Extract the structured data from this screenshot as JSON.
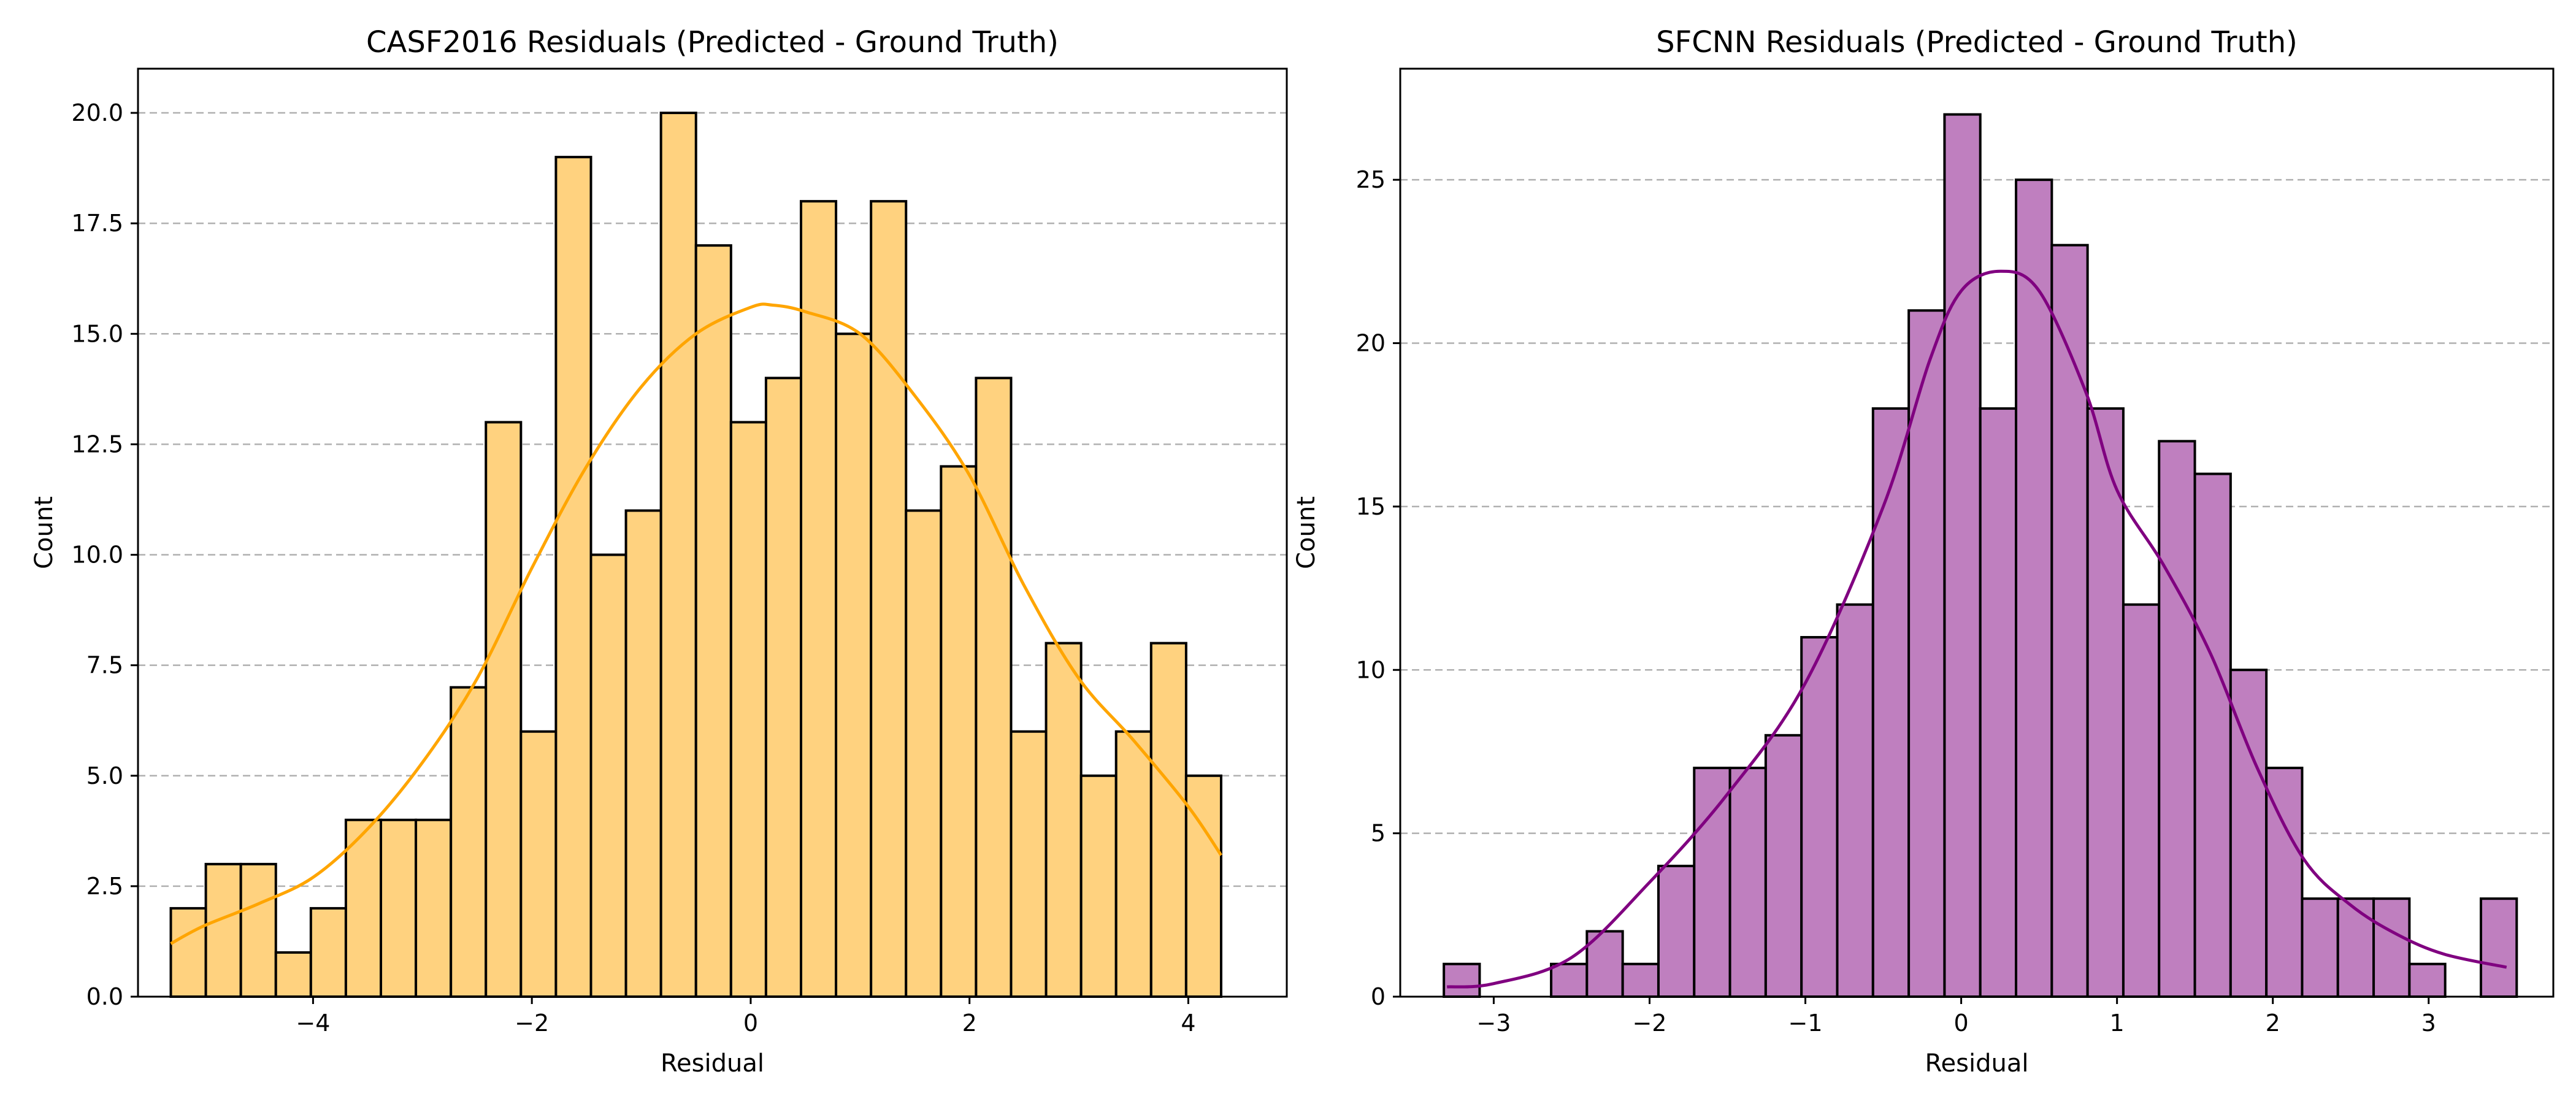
{
  "chart_data": [
    {
      "type": "bar",
      "title": "CASF2016 Residuals (Predicted - Ground Truth)",
      "xlabel": "Residual",
      "ylabel": "Count",
      "xlim": [
        -5.6,
        4.9
      ],
      "ylim": [
        0,
        21
      ],
      "xticks": [
        -4,
        -2,
        0,
        2,
        4
      ],
      "xtick_labels": [
        "−4",
        "−2",
        "0",
        "2",
        "4"
      ],
      "yticks": [
        0,
        2.5,
        5,
        7.5,
        10,
        12.5,
        15,
        17.5,
        20
      ],
      "ytick_labels": [
        "0.0",
        "2.5",
        "5.0",
        "7.5",
        "10.0",
        "12.5",
        "15.0",
        "17.5",
        "20.0"
      ],
      "grid": "y-dashed",
      "bin_start": -5.3,
      "bin_width": 0.32,
      "values": [
        2,
        3,
        3,
        1,
        2,
        4,
        4,
        4,
        7,
        13,
        6,
        19,
        10,
        11,
        20,
        17,
        13,
        14,
        18,
        15,
        18,
        11,
        12,
        14,
        6,
        8,
        5,
        6,
        8,
        5
      ],
      "bar_color": "#FFD27F",
      "kde_color": "#FFA500",
      "kde": {
        "x": [
          -5.3,
          -5.0,
          -4.5,
          -4.0,
          -3.5,
          -3.0,
          -2.5,
          -2.0,
          -1.5,
          -1.0,
          -0.5,
          0.0,
          0.2,
          0.5,
          1.0,
          1.5,
          2.0,
          2.5,
          3.0,
          3.5,
          4.0,
          4.3
        ],
        "y": [
          1.2,
          1.6,
          2.1,
          2.7,
          3.8,
          5.3,
          7.2,
          9.7,
          12.0,
          13.8,
          15.0,
          15.6,
          15.65,
          15.5,
          15.0,
          13.6,
          11.8,
          9.3,
          7.2,
          5.8,
          4.3,
          3.2
        ]
      }
    },
    {
      "type": "bar",
      "title": "SFCNN Residuals (Predicted - Ground Truth)",
      "xlabel": "Residual",
      "ylabel": "Count",
      "xlim": [
        -3.6,
        3.8
      ],
      "ylim": [
        0,
        28.4
      ],
      "xticks": [
        -3,
        -2,
        -1,
        0,
        1,
        2,
        3
      ],
      "xtick_labels": [
        "−3",
        "−2",
        "−1",
        "0",
        "1",
        "2",
        "3"
      ],
      "yticks": [
        0,
        5,
        10,
        15,
        20,
        25
      ],
      "ytick_labels": [
        "0",
        "5",
        "10",
        "15",
        "20",
        "25"
      ],
      "grid": "y-dashed",
      "bin_start": -3.32,
      "bin_width": 0.2295,
      "values": [
        1,
        0,
        0,
        1,
        2,
        1,
        4,
        7,
        7,
        8,
        11,
        12,
        18,
        21,
        27,
        18,
        25,
        23,
        18,
        12,
        17,
        16,
        10,
        7,
        3,
        3,
        3,
        1,
        0,
        3
      ],
      "bar_color": "#BF7FBF",
      "kde_color": "#800080",
      "kde": {
        "x": [
          -3.3,
          -3.0,
          -2.5,
          -2.0,
          -1.5,
          -1.0,
          -0.5,
          -0.2,
          0.0,
          0.25,
          0.5,
          0.8,
          1.0,
          1.3,
          1.6,
          1.9,
          2.2,
          2.5,
          2.8,
          3.1,
          3.5
        ],
        "y": [
          0.3,
          0.4,
          1.2,
          3.5,
          6.2,
          9.6,
          15.0,
          19.5,
          21.6,
          22.2,
          21.6,
          18.5,
          15.5,
          13.2,
          10.5,
          7.0,
          4.2,
          2.8,
          1.9,
          1.3,
          0.9
        ]
      }
    }
  ]
}
